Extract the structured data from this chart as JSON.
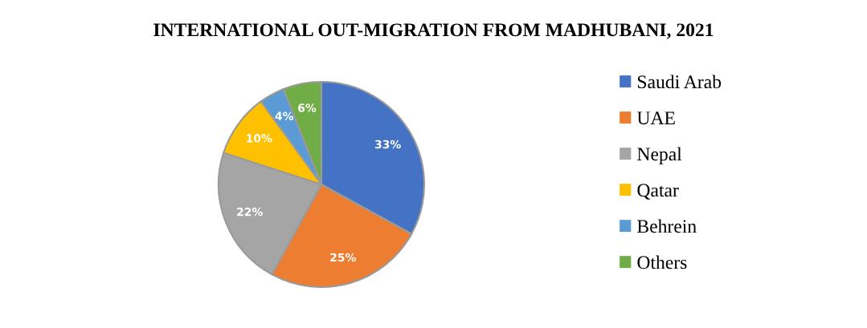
{
  "chart_data": {
    "type": "pie",
    "title": "INTERNATIONAL OUT-MIGRATION FROM MADHUBANI, 2021",
    "categories": [
      "Saudi Arab",
      "UAE",
      "Nepal",
      "Qatar",
      "Behrein",
      "Others"
    ],
    "values": [
      33,
      25,
      22,
      10,
      4,
      6
    ],
    "colors": [
      "#4472c4",
      "#ed7d31",
      "#a5a5a5",
      "#ffc000",
      "#5b9bd5",
      "#70ad47"
    ],
    "value_labels": [
      "33%",
      "25%",
      "22%",
      "10%",
      "4%",
      "6%"
    ],
    "legend": "right"
  }
}
